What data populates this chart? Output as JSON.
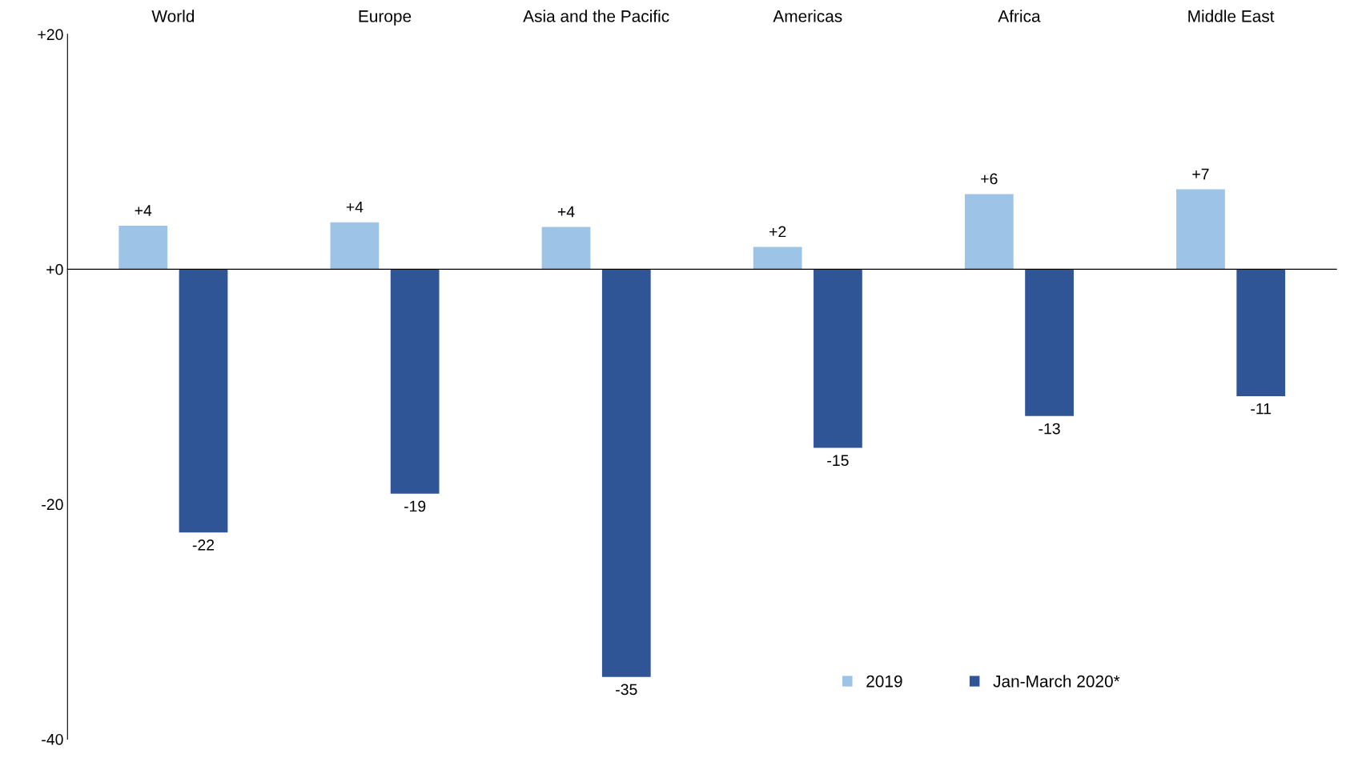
{
  "chart_data": {
    "type": "bar",
    "categories": [
      "World",
      "Europe",
      "Asia and the Pacific",
      "Americas",
      "Africa",
      "Middle East"
    ],
    "series": [
      {
        "name": "2019",
        "color": "#9dc3e6",
        "values": [
          3.7,
          4.0,
          3.6,
          1.9,
          6.4,
          6.8
        ],
        "value_labels": [
          "+4",
          "+4",
          "+4",
          "+2",
          "+6",
          "+7"
        ]
      },
      {
        "name": "Jan-March 2020*",
        "color": "#2f5597",
        "values": [
          -22.4,
          -19.1,
          -34.7,
          -15.2,
          -12.5,
          -10.8
        ],
        "value_labels": [
          "-22",
          "-19",
          "-35",
          "-15",
          "-13",
          "-11"
        ]
      }
    ],
    "ylim": [
      -40,
      20
    ],
    "yticks": [
      {
        "value": 20,
        "label": "+20"
      },
      {
        "value": 0,
        "label": "+0"
      },
      {
        "value": -20,
        "label": "-20"
      },
      {
        "value": -40,
        "label": "-40"
      }
    ],
    "legend": "bottom right"
  }
}
